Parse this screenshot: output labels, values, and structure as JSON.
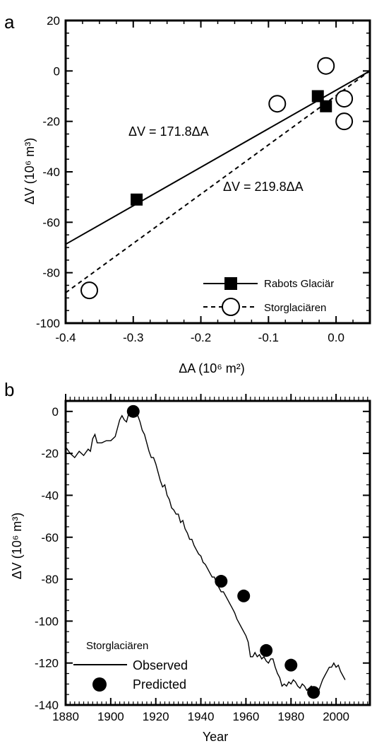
{
  "chart_data": [
    {
      "panel_label": "a",
      "type": "scatter",
      "xlabel": "ΔA (10⁶ m²)",
      "ylabel": "ΔV (10⁶ m³)",
      "xlim": [
        -0.4,
        0.05
      ],
      "ylim": [
        -100,
        20
      ],
      "x_ticks": [
        -0.4,
        -0.3,
        -0.2,
        -0.1,
        0.0
      ],
      "x_tick_labels": [
        "-0.4",
        "-0.3",
        "-0.2",
        "-0.1",
        "0.0"
      ],
      "y_ticks": [
        20,
        0,
        -20,
        -40,
        -60,
        -80,
        -100
      ],
      "y_tick_labels": [
        "20",
        "0",
        "-20",
        "-40",
        "-60",
        "-80",
        "-100"
      ],
      "grid": false,
      "legend_position": "bottom-right",
      "series": [
        {
          "name": "Rabots Glaciär",
          "marker": "filled-square",
          "line_style": "solid",
          "points": [
            [
              -0.295,
              -51
            ],
            [
              -0.027,
              -10
            ],
            [
              -0.015,
              -14
            ]
          ]
        },
        {
          "name": "Storglaciären",
          "marker": "open-circle",
          "line_style": "dashed",
          "points": [
            [
              -0.365,
              -87
            ],
            [
              -0.087,
              -13
            ],
            [
              -0.015,
              2
            ],
            [
              0.012,
              -11
            ],
            [
              0.012,
              -20
            ]
          ]
        }
      ],
      "fit_lines": [
        {
          "series": "Rabots Glaciär",
          "slope": 171.8,
          "style": "solid",
          "label": "ΔV = 171.8ΔA"
        },
        {
          "series": "Storglaciären",
          "slope": 219.8,
          "style": "dashed",
          "label": "ΔV = 219.8ΔA"
        }
      ]
    },
    {
      "panel_label": "b",
      "type": "line",
      "title": "Storglaciären",
      "xlabel": "Year",
      "ylabel": "ΔV (10⁶ m³)",
      "xlim": [
        1880,
        2015
      ],
      "ylim": [
        -140,
        5
      ],
      "x_ticks": [
        1880,
        1900,
        1920,
        1940,
        1960,
        1980,
        2000
      ],
      "x_tick_labels": [
        "1880",
        "1900",
        "1920",
        "1940",
        "1960",
        "1980",
        "2000"
      ],
      "y_ticks": [
        0,
        -20,
        -40,
        -60,
        -80,
        -100,
        -120,
        -140
      ],
      "y_tick_labels": [
        "0",
        "-20",
        "-40",
        "-60",
        "-80",
        "-100",
        "-120",
        "-140"
      ],
      "grid": false,
      "legend_position": "bottom-left",
      "series": [
        {
          "name": "Observed",
          "style": "line",
          "points": [
            [
              1880,
              -17
            ],
            [
              1882,
              -20
            ],
            [
              1884,
              -22
            ],
            [
              1886,
              -19
            ],
            [
              1888,
              -21
            ],
            [
              1890,
              -18
            ],
            [
              1891,
              -19
            ],
            [
              1892,
              -13
            ],
            [
              1893,
              -11
            ],
            [
              1894,
              -15
            ],
            [
              1896,
              -15
            ],
            [
              1898,
              -14
            ],
            [
              1900,
              -14
            ],
            [
              1902,
              -12
            ],
            [
              1904,
              -4
            ],
            [
              1905,
              -2
            ],
            [
              1906,
              -4
            ],
            [
              1907,
              -5
            ],
            [
              1908,
              -1
            ],
            [
              1909,
              1
            ],
            [
              1910,
              0
            ],
            [
              1911,
              -1
            ],
            [
              1912,
              -2
            ],
            [
              1913,
              -5
            ],
            [
              1914,
              -9
            ],
            [
              1915,
              -11
            ],
            [
              1916,
              -15
            ],
            [
              1917,
              -19
            ],
            [
              1918,
              -22
            ],
            [
              1919,
              -22
            ],
            [
              1920,
              -25
            ],
            [
              1921,
              -29
            ],
            [
              1922,
              -33
            ],
            [
              1923,
              -36
            ],
            [
              1924,
              -35
            ],
            [
              1925,
              -40
            ],
            [
              1926,
              -42
            ],
            [
              1927,
              -46
            ],
            [
              1928,
              -47
            ],
            [
              1929,
              -49
            ],
            [
              1930,
              -49
            ],
            [
              1931,
              -53
            ],
            [
              1932,
              -52
            ],
            [
              1933,
              -56
            ],
            [
              1934,
              -58
            ],
            [
              1935,
              -61
            ],
            [
              1936,
              -61
            ],
            [
              1937,
              -64
            ],
            [
              1938,
              -66
            ],
            [
              1939,
              -68
            ],
            [
              1940,
              -69
            ],
            [
              1941,
              -72
            ],
            [
              1942,
              -73
            ],
            [
              1943,
              -75
            ],
            [
              1944,
              -77
            ],
            [
              1945,
              -79
            ],
            [
              1946,
              -79
            ],
            [
              1947,
              -82
            ],
            [
              1948,
              -84
            ],
            [
              1949,
              -86
            ],
            [
              1950,
              -86
            ],
            [
              1951,
              -88
            ],
            [
              1952,
              -90
            ],
            [
              1953,
              -92
            ],
            [
              1954,
              -94
            ],
            [
              1955,
              -96
            ],
            [
              1956,
              -99
            ],
            [
              1957,
              -101
            ],
            [
              1958,
              -103
            ],
            [
              1959,
              -105
            ],
            [
              1960,
              -107
            ],
            [
              1961,
              -110
            ],
            [
              1962,
              -117
            ],
            [
              1963,
              -117
            ],
            [
              1964,
              -115
            ],
            [
              1965,
              -117
            ],
            [
              1966,
              -116
            ],
            [
              1967,
              -118
            ],
            [
              1968,
              -117
            ],
            [
              1969,
              -119
            ],
            [
              1970,
              -120
            ],
            [
              1971,
              -118
            ],
            [
              1972,
              -118
            ],
            [
              1973,
              -122
            ],
            [
              1974,
              -125
            ],
            [
              1975,
              -127
            ],
            [
              1976,
              -131
            ],
            [
              1977,
              -130
            ],
            [
              1978,
              -131
            ],
            [
              1979,
              -129
            ],
            [
              1980,
              -130
            ],
            [
              1981,
              -128
            ],
            [
              1982,
              -129
            ],
            [
              1983,
              -131
            ],
            [
              1984,
              -132
            ],
            [
              1985,
              -130
            ],
            [
              1986,
              -131
            ],
            [
              1987,
              -133
            ],
            [
              1988,
              -132
            ],
            [
              1989,
              -131
            ],
            [
              1990,
              -133
            ],
            [
              1991,
              -133
            ],
            [
              1992,
              -134
            ],
            [
              1993,
              -131
            ],
            [
              1994,
              -128
            ],
            [
              1995,
              -126
            ],
            [
              1996,
              -124
            ],
            [
              1997,
              -122
            ],
            [
              1998,
              -122
            ],
            [
              1999,
              -120
            ],
            [
              2000,
              -122
            ],
            [
              2001,
              -121
            ],
            [
              2002,
              -124
            ],
            [
              2003,
              -126
            ],
            [
              2004,
              -128
            ]
          ]
        },
        {
          "name": "Predicted",
          "style": "filled-circle",
          "points": [
            [
              1910,
              0
            ],
            [
              1949,
              -81
            ],
            [
              1959,
              -88
            ],
            [
              1969,
              -114
            ],
            [
              1980,
              -121
            ],
            [
              1990,
              -134
            ]
          ]
        }
      ]
    }
  ]
}
